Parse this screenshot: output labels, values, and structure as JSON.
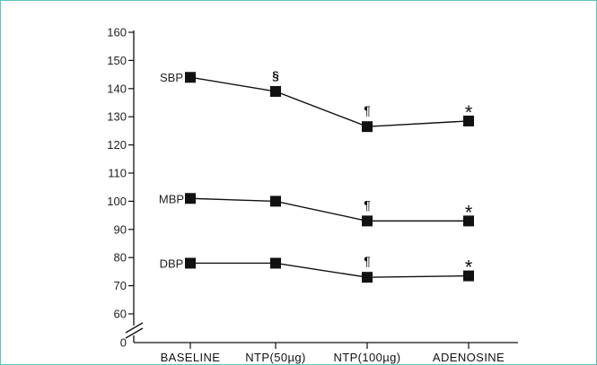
{
  "chart_data": {
    "type": "line",
    "categories": [
      "BASELINE",
      "NTP(50µg)",
      "NTP(100µg)",
      "ADENOSINE"
    ],
    "y_ticks": [
      "0",
      "60",
      "70",
      "80",
      "90",
      "100",
      "110",
      "120",
      "130",
      "140",
      "150",
      "160"
    ],
    "ylim": [
      0,
      160
    ],
    "axis_break": [
      0,
      55
    ],
    "grid": false,
    "series": [
      {
        "name": "SBP",
        "values": [
          144,
          139,
          126.5,
          128.5
        ],
        "annotations": [
          "",
          "§",
          "¶",
          "*"
        ]
      },
      {
        "name": "MBP",
        "values": [
          101,
          100,
          93,
          93
        ],
        "annotations": [
          "",
          "",
          "¶",
          "*"
        ]
      },
      {
        "name": "DBP",
        "values": [
          78,
          78,
          73,
          73.5
        ],
        "annotations": [
          "",
          "",
          "¶",
          "*"
        ]
      }
    ],
    "colors": {
      "line": "#111111",
      "marker": "#111111",
      "frame_border": "#5fc4be"
    }
  }
}
